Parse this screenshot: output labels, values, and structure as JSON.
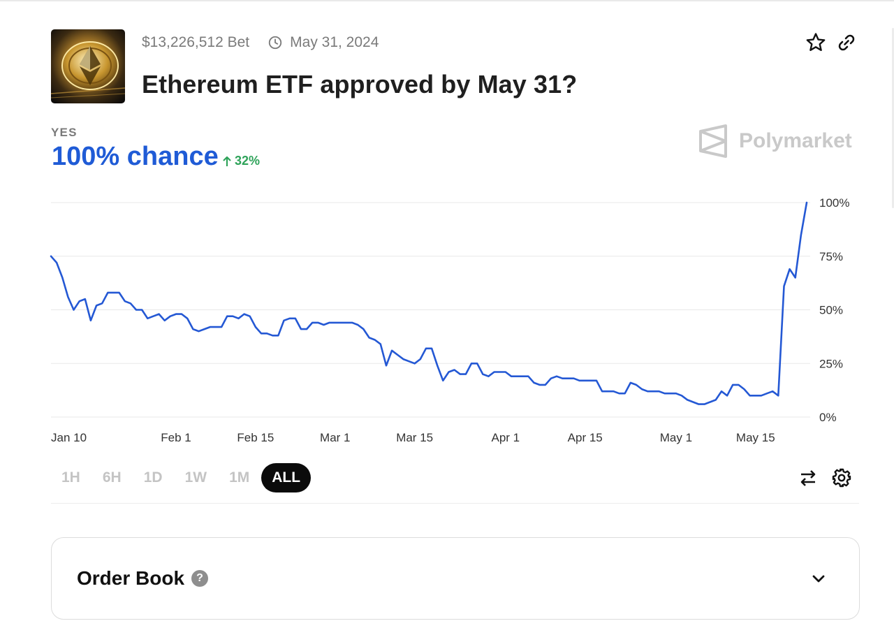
{
  "market": {
    "volume": "$13,226,512 Bet",
    "end_date": "May 31, 2024",
    "title": "Ethereum ETF approved by May 31?",
    "outcome_label": "YES",
    "chance_text": "100% chance",
    "change_text": "32%",
    "brand": "Polymarket",
    "icons": {
      "thumbnail": "ethereum-coin-image",
      "date": "clock-icon",
      "favorite": "star-icon",
      "share": "link-icon",
      "change": "arrow-up-icon",
      "swap": "swap-arrows-icon",
      "settings": "gear-icon",
      "help": "question-icon",
      "expand": "chevron-down-icon"
    }
  },
  "chart_data": {
    "type": "line",
    "x_ticks": [
      "Jan 10",
      "Feb 1",
      "Feb 15",
      "Mar 1",
      "Mar 15",
      "Apr 1",
      "Apr 15",
      "May 1",
      "May 15"
    ],
    "y_ticks": [
      "100%",
      "75%",
      "50%",
      "25%",
      "0%"
    ],
    "ylim": [
      0,
      100
    ],
    "grid": true,
    "color": "#2458d4",
    "series": [
      {
        "x": [
          "Jan 10",
          "Jan 11",
          "Jan 12",
          "Jan 13",
          "Jan 14",
          "Jan 15",
          "Jan 16",
          "Jan 17",
          "Jan 18",
          "Jan 19",
          "Jan 20",
          "Jan 21",
          "Jan 22",
          "Jan 23",
          "Jan 24",
          "Jan 25",
          "Jan 26",
          "Jan 27",
          "Jan 28",
          "Jan 29",
          "Jan 30",
          "Jan 31",
          "Feb 1",
          "Feb 2",
          "Feb 3",
          "Feb 4",
          "Feb 5",
          "Feb 6",
          "Feb 7",
          "Feb 8",
          "Feb 9",
          "Feb 10",
          "Feb 11",
          "Feb 12",
          "Feb 13",
          "Feb 14",
          "Feb 15",
          "Feb 16",
          "Feb 17",
          "Feb 18",
          "Feb 19",
          "Feb 20",
          "Feb 21",
          "Feb 22",
          "Feb 23",
          "Feb 24",
          "Feb 25",
          "Feb 26",
          "Feb 27",
          "Feb 28",
          "Mar 1",
          "Mar 2",
          "Mar 3",
          "Mar 4",
          "Mar 5",
          "Mar 6",
          "Mar 7",
          "Mar 8",
          "Mar 9",
          "Mar 10",
          "Mar 11",
          "Mar 12",
          "Mar 13",
          "Mar 14",
          "Mar 15",
          "Mar 16",
          "Mar 17",
          "Mar 18",
          "Mar 19",
          "Mar 20",
          "Mar 21",
          "Mar 22",
          "Mar 23",
          "Mar 24",
          "Mar 25",
          "Mar 26",
          "Mar 27",
          "Mar 28",
          "Mar 29",
          "Mar 30",
          "Apr 1",
          "Apr 2",
          "Apr 3",
          "Apr 4",
          "Apr 5",
          "Apr 6",
          "Apr 7",
          "Apr 8",
          "Apr 9",
          "Apr 10",
          "Apr 11",
          "Apr 12",
          "Apr 13",
          "Apr 14",
          "Apr 15",
          "Apr 16",
          "Apr 17",
          "Apr 18",
          "Apr 19",
          "Apr 20",
          "Apr 21",
          "Apr 22",
          "Apr 23",
          "Apr 24",
          "Apr 25",
          "Apr 26",
          "Apr 27",
          "Apr 28",
          "Apr 29",
          "Apr 30",
          "May 1",
          "May 2",
          "May 3",
          "May 4",
          "May 5",
          "May 6",
          "May 7",
          "May 8",
          "May 9",
          "May 10",
          "May 11",
          "May 12",
          "May 13",
          "May 14",
          "May 15",
          "May 16",
          "May 17",
          "May 18",
          "May 19",
          "May 20",
          "May 21",
          "May 22",
          "May 23",
          "May 24"
        ],
        "values": [
          75,
          72,
          65,
          56,
          50,
          54,
          55,
          45,
          52,
          53,
          58,
          58,
          58,
          54,
          53,
          50,
          50,
          46,
          47,
          48,
          45,
          47,
          48,
          48,
          46,
          41,
          40,
          41,
          42,
          42,
          42,
          47,
          47,
          46,
          48,
          47,
          42,
          39,
          39,
          38,
          38,
          45,
          46,
          46,
          41,
          41,
          44,
          44,
          43,
          44,
          44,
          44,
          44,
          44,
          43,
          41,
          37,
          36,
          34,
          24,
          31,
          29,
          27,
          26,
          25,
          27,
          32,
          32,
          24,
          17,
          21,
          22,
          20,
          20,
          25,
          25,
          20,
          19,
          21,
          21,
          21,
          19,
          19,
          19,
          19,
          16,
          15,
          15,
          18,
          19,
          18,
          18,
          18,
          17,
          17,
          17,
          17,
          12,
          12,
          12,
          11,
          11,
          16,
          15,
          13,
          12,
          12,
          12,
          11,
          11,
          11,
          10,
          8,
          7,
          6,
          6,
          7,
          8,
          12,
          10,
          15,
          15,
          13,
          10,
          10,
          10,
          11,
          12,
          10,
          61,
          69,
          65,
          85,
          100
        ]
      }
    ]
  },
  "controls": {
    "ranges": [
      "1H",
      "6H",
      "1D",
      "1W",
      "1M",
      "ALL"
    ],
    "active_range": "ALL"
  },
  "order_book": {
    "title": "Order Book",
    "help": "?"
  }
}
